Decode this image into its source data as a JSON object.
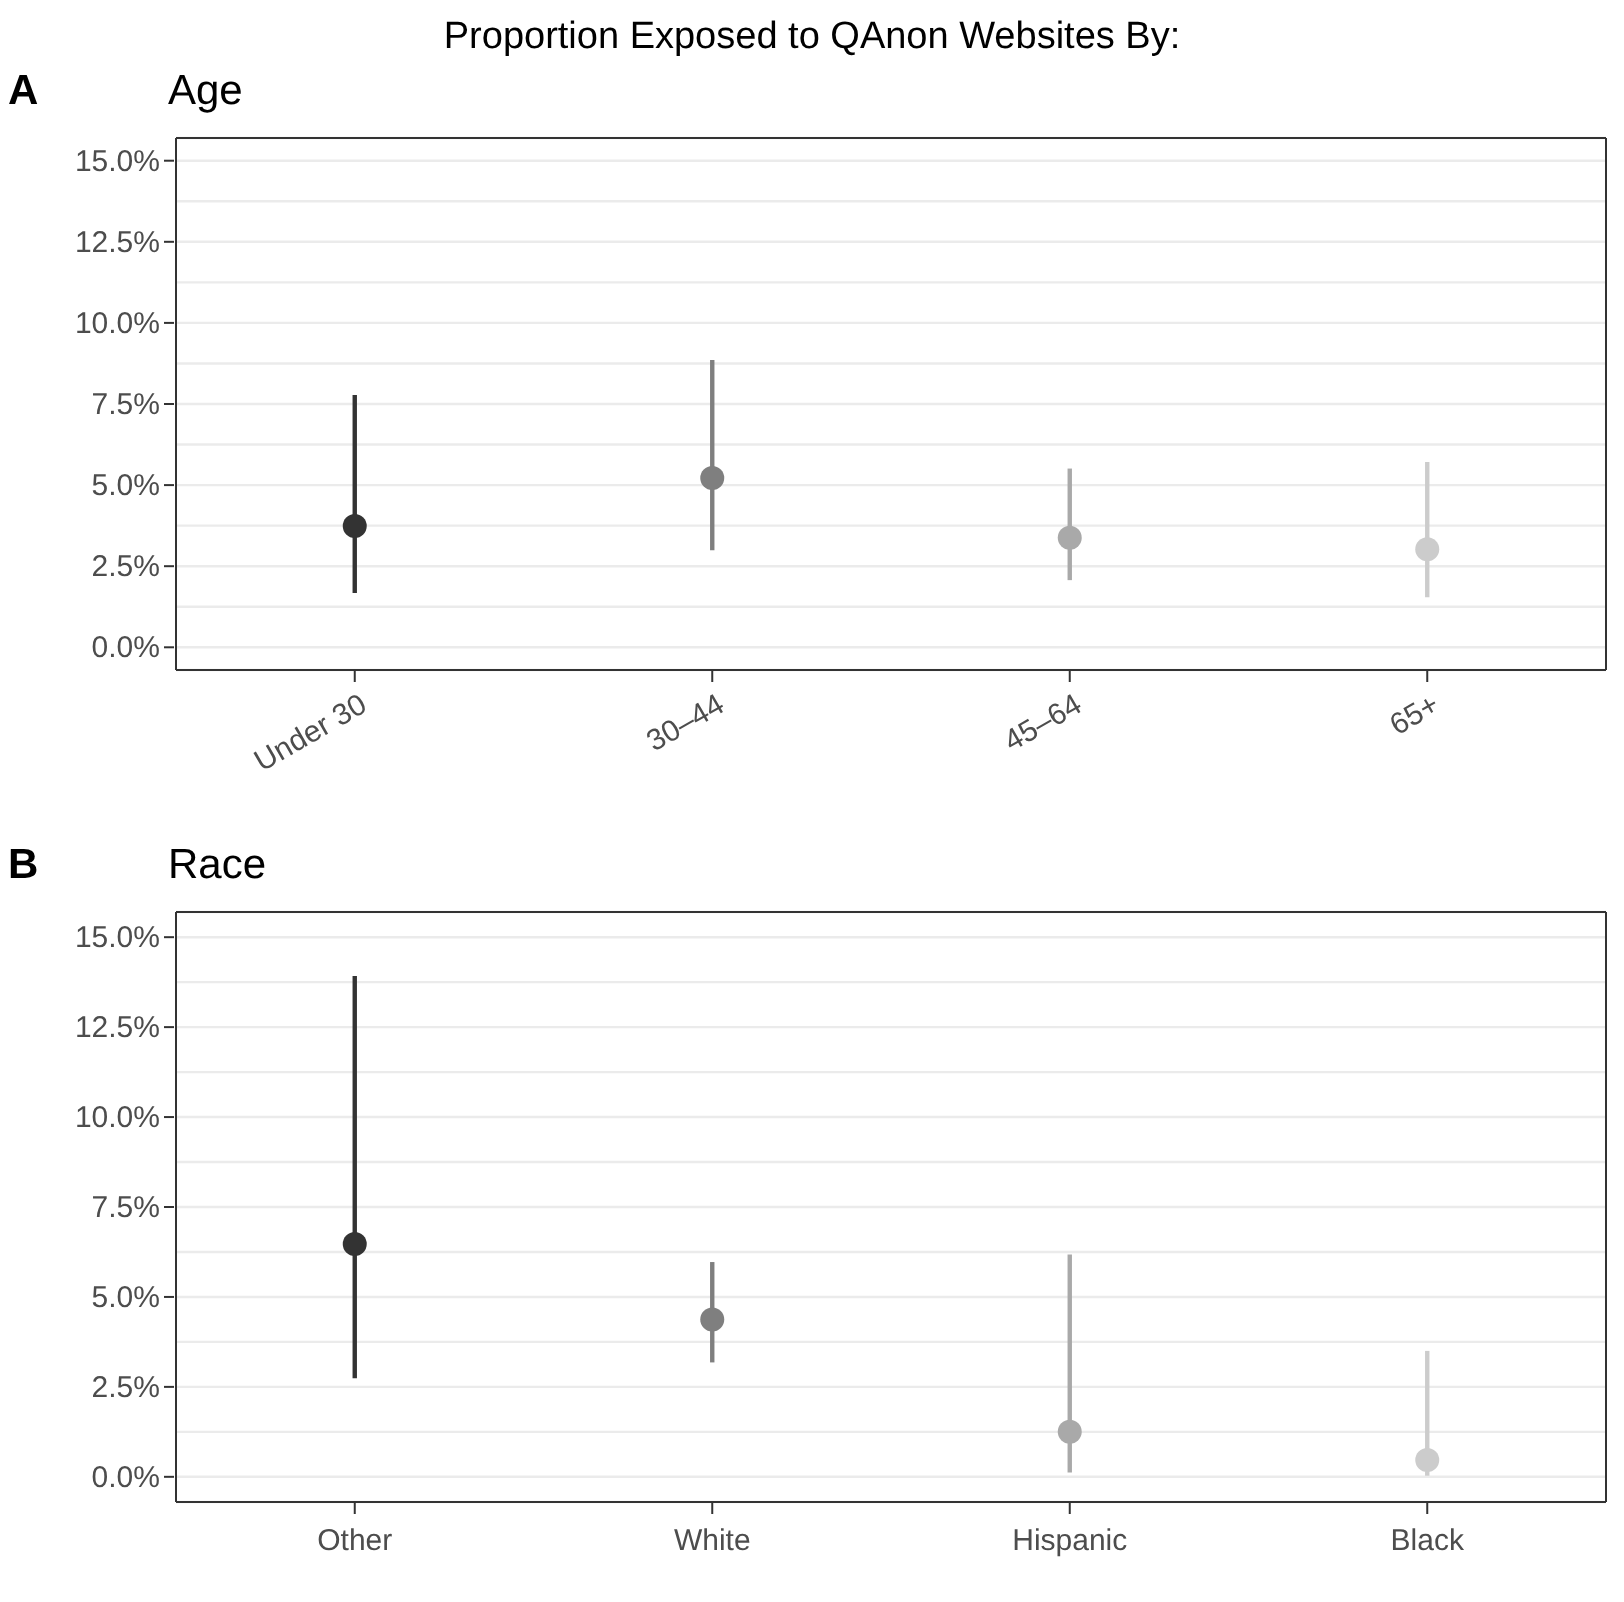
{
  "chart_data": [
    {
      "type": "scatter",
      "title": "Proportion Exposed to QAnon Websites By:",
      "subtitle": "Age",
      "annotations": [
        "A"
      ],
      "categories": [
        "Under 30",
        "30–44",
        "45–64",
        "65+"
      ],
      "values": [
        3.74,
        5.22,
        3.38,
        3.02
      ],
      "errors": [
        [
          1.67,
          7.78
        ],
        [
          2.99,
          8.86
        ],
        [
          2.07,
          5.51
        ],
        [
          1.54,
          5.71
        ]
      ],
      "colors": [
        "#333333",
        "#7f7f7f",
        "#a9a9a9",
        "#cccccc"
      ],
      "ylim": [
        -0.7,
        15.7
      ],
      "yticks": [
        {
          "value": 0,
          "label": "0.0%"
        },
        {
          "value": 1.25,
          "label": null
        },
        {
          "value": 2.5,
          "label": "2.5%"
        },
        {
          "value": 3.75,
          "label": null
        },
        {
          "value": 5,
          "label": "5.0%"
        },
        {
          "value": 6.25,
          "label": null
        },
        {
          "value": 7.5,
          "label": "7.5%"
        },
        {
          "value": 8.75,
          "label": null
        },
        {
          "value": 10,
          "label": "10.0%"
        },
        {
          "value": 11.25,
          "label": null
        },
        {
          "value": 12.5,
          "label": "12.5%"
        },
        {
          "value": 13.75,
          "label": null
        },
        {
          "value": 15,
          "label": "15.0%"
        }
      ],
      "grid": "y",
      "marker": "circle"
    },
    {
      "type": "scatter",
      "subtitle": "Race",
      "annotations": [
        "B"
      ],
      "categories": [
        "Other",
        "White",
        "Hispanic",
        "Black"
      ],
      "values": [
        6.47,
        4.37,
        1.25,
        0.47
      ],
      "errors": [
        [
          2.74,
          13.92
        ],
        [
          3.18,
          5.97
        ],
        [
          0.12,
          6.18
        ],
        [
          0.03,
          3.5
        ]
      ],
      "colors": [
        "#333333",
        "#7f7f7f",
        "#a9a9a9",
        "#cccccc"
      ],
      "ylim": [
        -0.7,
        15.7
      ],
      "yticks": [
        {
          "value": 0,
          "label": "0.0%"
        },
        {
          "value": 1.25,
          "label": null
        },
        {
          "value": 2.5,
          "label": "2.5%"
        },
        {
          "value": 3.75,
          "label": null
        },
        {
          "value": 5,
          "label": "5.0%"
        },
        {
          "value": 6.25,
          "label": null
        },
        {
          "value": 7.5,
          "label": "7.5%"
        },
        {
          "value": 8.75,
          "label": null
        },
        {
          "value": 10,
          "label": "10.0%"
        },
        {
          "value": 11.25,
          "label": null
        },
        {
          "value": 12.5,
          "label": "12.5%"
        },
        {
          "value": 13.75,
          "label": null
        },
        {
          "value": 15,
          "label": "15.0%"
        }
      ],
      "grid": "y",
      "marker": "circle"
    }
  ]
}
